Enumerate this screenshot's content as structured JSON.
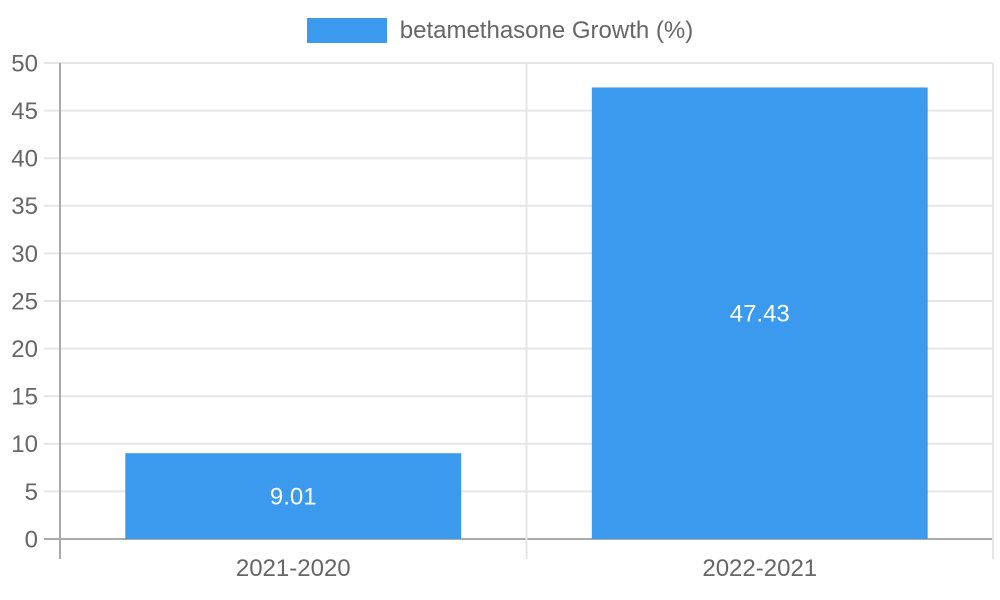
{
  "chart_data": {
    "type": "bar",
    "title": "",
    "legend_position": "top",
    "categories": [
      "2021-2020",
      "2022-2021"
    ],
    "series": [
      {
        "name": "betamethasone Growth (%)",
        "values": [
          9.01,
          47.43
        ],
        "color": "#3B99EE"
      }
    ],
    "value_labels": [
      "9.01",
      "47.43"
    ],
    "ylim": [
      0,
      50
    ],
    "ytick_step": 5,
    "ytick_labels": [
      "0",
      "5",
      "10",
      "15",
      "20",
      "25",
      "30",
      "35",
      "40",
      "45",
      "50"
    ],
    "grid": true,
    "colors": {
      "bar": "#3B99EE",
      "tick_text": "#666666",
      "value_text": "#FFFFFF",
      "gridline": "#E6E6E6",
      "axis_line": "#ABABAB",
      "background": "#FFFFFF"
    }
  }
}
